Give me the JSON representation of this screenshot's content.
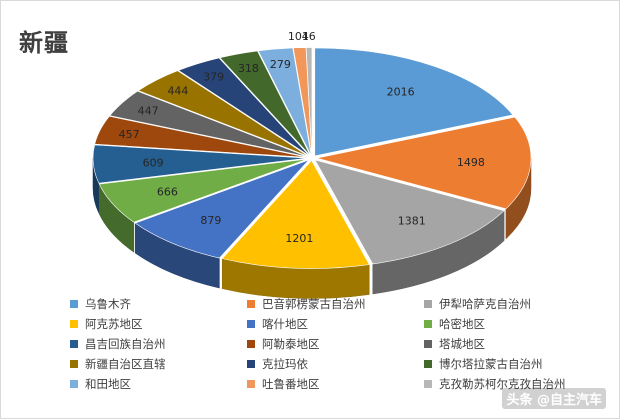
{
  "page": {
    "watermark": "头条 @自主汽车"
  },
  "chart_data": {
    "type": "pie",
    "style": "3d-exploded",
    "title": "新疆",
    "legend_position": "bottom",
    "slices": [
      {
        "label": "乌鲁木齐",
        "value": 2016,
        "color": "#5b9bd5"
      },
      {
        "label": "巴音郭楞蒙古自治州",
        "value": 1498,
        "color": "#ed7d31"
      },
      {
        "label": "伊犁哈萨克自治州",
        "value": 1381,
        "color": "#a5a5a5"
      },
      {
        "label": "阿克苏地区",
        "value": 1201,
        "color": "#ffc000"
      },
      {
        "label": "喀什地区",
        "value": 879,
        "color": "#4472c4"
      },
      {
        "label": "哈密地区",
        "value": 666,
        "color": "#70ad47"
      },
      {
        "label": "昌吉回族自治州",
        "value": 609,
        "color": "#255e91"
      },
      {
        "label": "阿勒泰地区",
        "value": 457,
        "color": "#9e480e"
      },
      {
        "label": "塔城地区",
        "value": 447,
        "color": "#636363"
      },
      {
        "label": "新疆自治区直辖",
        "value": 444,
        "color": "#997300"
      },
      {
        "label": "克拉玛依",
        "value": 379,
        "color": "#264478"
      },
      {
        "label": "博尔塔拉蒙古自治州",
        "value": 318,
        "color": "#43682b"
      },
      {
        "label": "和田地区",
        "value": 279,
        "color": "#7cafdd"
      },
      {
        "label": "吐鲁番地区",
        "value": 101,
        "color": "#f1975a"
      },
      {
        "label": "克孜勒苏柯尔克孜自治州",
        "value": 46,
        "color": "#b7b7b7"
      }
    ]
  }
}
